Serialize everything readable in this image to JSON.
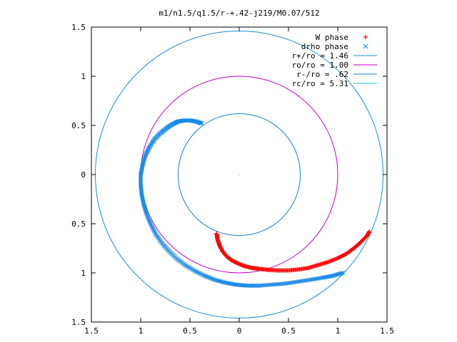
{
  "chart_data": {
    "type": "scatter",
    "title": "m1/n1.5/q1.5/r-+.42-j219/M0.07/512",
    "xlabel": "",
    "ylabel": "",
    "xlim": [
      -1.5,
      1.5
    ],
    "ylim": [
      -1.5,
      1.5
    ],
    "x_ticks": [
      "1.5",
      "1",
      "0.5",
      "0",
      "0.5",
      "1",
      "1.5"
    ],
    "y_ticks": [
      "1.5",
      "1",
      "0.5",
      "0",
      "0.5",
      "1",
      "1.5"
    ],
    "grid": false,
    "legend_position": "top-right",
    "legend": [
      {
        "label": "W phase",
        "marker": "+",
        "color": "#ff0000"
      },
      {
        "label": "drho phase",
        "marker": "x",
        "color": "#1a8be6"
      },
      {
        "label": "r+/ro = 1.46",
        "line": true,
        "color": "#1f8fd0"
      },
      {
        "label": "ro/ro = 1.00",
        "line": true,
        "color": "#c000c0"
      },
      {
        "label": "r-/ro = .62",
        "line": true,
        "color": "#1f7fc0"
      },
      {
        "label": "rc/ro = 5.31",
        "line": true,
        "color": "#20c0e0"
      }
    ],
    "circles": [
      {
        "name": "r+/ro",
        "radius": 1.46,
        "color": "#1f8fd0"
      },
      {
        "name": "ro/ro",
        "radius": 1.0,
        "color": "#c000c0"
      },
      {
        "name": "r-/ro",
        "radius": 0.62,
        "color": "#1f7fc0"
      }
    ],
    "series": [
      {
        "name": "W phase",
        "marker": "+",
        "color": "#ff0000",
        "x": [
          -0.23,
          -0.22,
          -0.2,
          -0.17,
          -0.13,
          -0.08,
          -0.02,
          0.05,
          0.13,
          0.21,
          0.3,
          0.4,
          0.5,
          0.6,
          0.7,
          0.8,
          0.9,
          1.0,
          1.08,
          1.15,
          1.21,
          1.26,
          1.3,
          1.32
        ],
        "y": [
          -0.6,
          -0.66,
          -0.72,
          -0.78,
          -0.83,
          -0.87,
          -0.9,
          -0.93,
          -0.95,
          -0.96,
          -0.97,
          -0.975,
          -0.975,
          -0.965,
          -0.95,
          -0.92,
          -0.89,
          -0.85,
          -0.81,
          -0.76,
          -0.71,
          -0.66,
          -0.62,
          -0.58
        ]
      },
      {
        "name": "drho phase",
        "marker": "x",
        "color": "#1a8be6",
        "x": [
          -0.38,
          -0.44,
          -0.5,
          -0.56,
          -0.62,
          -0.68,
          -0.74,
          -0.8,
          -0.86,
          -0.91,
          -0.95,
          -0.98,
          -1.0,
          -1.0,
          -0.99,
          -0.97,
          -0.94,
          -0.9,
          -0.85,
          -0.79,
          -0.72,
          -0.64,
          -0.55,
          -0.45,
          -0.35,
          -0.25,
          -0.14,
          -0.03,
          0.08,
          0.2,
          0.33,
          0.46,
          0.59,
          0.72,
          0.84,
          0.95,
          1.05
        ],
        "y": [
          0.52,
          0.54,
          0.55,
          0.55,
          0.54,
          0.51,
          0.47,
          0.42,
          0.36,
          0.28,
          0.2,
          0.1,
          0.0,
          -0.1,
          -0.2,
          -0.3,
          -0.4,
          -0.5,
          -0.6,
          -0.69,
          -0.77,
          -0.85,
          -0.92,
          -0.98,
          -1.03,
          -1.07,
          -1.1,
          -1.12,
          -1.13,
          -1.13,
          -1.12,
          -1.11,
          -1.09,
          -1.07,
          -1.05,
          -1.03,
          -1.0
        ]
      }
    ]
  }
}
